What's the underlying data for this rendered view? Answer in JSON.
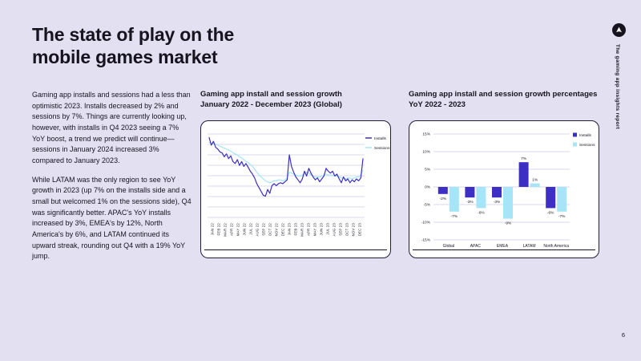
{
  "slide": {
    "title": "The state of play on the\nmobile games market",
    "side_label": "The gaming app insights report",
    "page_number": "6"
  },
  "icons": {
    "logo": "adjust-circle-logo"
  },
  "body_text": {
    "paragraph_1": "Gaming app installs and sessions had a less than optimistic 2023. Installs decreased by 2% and sessions by 7%. Things are currently looking up, however, with installs in Q4 2023 seeing a 7% YoY boost, a trend we predict will continue—sessions in January 2024 increased 3% compared to January 2023.",
    "paragraph_2": "While LATAM was the only region to see YoY growth in 2023 (up 7% on the installs side and a small but welcomed 1% on the sessions side), Q4 was significantly better. APAC's YoY installs increased by 3%, EMEA's by 12%, North America's by 6%, and LATAM continued its upward streak, rounding out Q4 with a 19% YoY jump."
  },
  "colors": {
    "background": "#E3E0F2",
    "text": "#17131F",
    "installs": "#3D2EC4",
    "sessions": "#A5E5F7",
    "grid": "#CDCBE9",
    "card_border": "#211C3A",
    "card_bg": "#FFFFFF"
  },
  "chart_data": [
    {
      "type": "line",
      "title": "Gaming app install and session growth\nJanuary 2022 - December 2023 (Global)",
      "legend_position": "top-right",
      "grid": "horizontal",
      "y_gridlines": 9,
      "y_axis_labels": [],
      "x_labels": [
        "JAN 22",
        "FEB 22",
        "MAR 22",
        "APR 22",
        "MAY 22",
        "JUN 22",
        "JUL 22",
        "AUG 22",
        "SEP 22",
        "OCT 22",
        "NOV 22",
        "DEC 22",
        "JAN 23",
        "FEB 23",
        "MAR 23",
        "APR 23",
        "MAY 23",
        "JUN 23",
        "JUL 23",
        "AUG 23",
        "SEP 23",
        "OCT 23",
        "NOV 23",
        "DEC 23"
      ],
      "series": [
        {
          "name": "Installs",
          "color": "#3D2EC4",
          "values": [
            88,
            80,
            84,
            78,
            76,
            73,
            72,
            68,
            71,
            66,
            69,
            63,
            61,
            65,
            59,
            63,
            58,
            61,
            57,
            53,
            50,
            46,
            40,
            36,
            32,
            28,
            27,
            34,
            30,
            38,
            40,
            38,
            40,
            41,
            40,
            42,
            44,
            70,
            58,
            52,
            47,
            44,
            41,
            45,
            53,
            48,
            56,
            51,
            47,
            44,
            46,
            42,
            45,
            48,
            56,
            53,
            51,
            53,
            48,
            50,
            45,
            41,
            47,
            43,
            45,
            41,
            44,
            42,
            45,
            43,
            46,
            66
          ]
        },
        {
          "name": "Sessions",
          "color": "#A5E5F7",
          "values": [
            83,
            82,
            82,
            81,
            80,
            79,
            78,
            77,
            76,
            75,
            74,
            72,
            71,
            70,
            68,
            67,
            65,
            63,
            62,
            60,
            58,
            55,
            52,
            49,
            47,
            45,
            43,
            42,
            41,
            42,
            43,
            43,
            44,
            44,
            43,
            44,
            46,
            52,
            51,
            50,
            49,
            48,
            48,
            49,
            50,
            52,
            51,
            49,
            48,
            47,
            47,
            47,
            48,
            49,
            50,
            49,
            49,
            49,
            48,
            48,
            47,
            46,
            46,
            45,
            46,
            46,
            45,
            46,
            47,
            47,
            49,
            54
          ]
        }
      ]
    },
    {
      "type": "bar",
      "title": "Gaming app install and session growth percentages\nYoY 2022 - 2023",
      "legend_position": "top-right",
      "unit": "%",
      "ylim": [
        -15,
        15
      ],
      "y_ticks": [
        "15%",
        "10%",
        "5%",
        "0%",
        "-5%",
        "-10%",
        "-15%"
      ],
      "categories": [
        "Global",
        "APAC",
        "EMEA",
        "LATAM",
        "North America"
      ],
      "series": [
        {
          "name": "Installs",
          "color": "#3D2EC4",
          "values": [
            -2,
            -3,
            -3,
            7,
            -6
          ]
        },
        {
          "name": "Sessions",
          "color": "#A5E5F7",
          "values": [
            -7,
            -6,
            -9,
            1,
            -7
          ]
        }
      ],
      "bar_labels": [
        [
          "-2%",
          "-3%",
          "-3%",
          "7%",
          "-6%"
        ],
        [
          "-7%",
          "-6%",
          "-9%",
          "1%",
          "-7%"
        ]
      ]
    }
  ]
}
